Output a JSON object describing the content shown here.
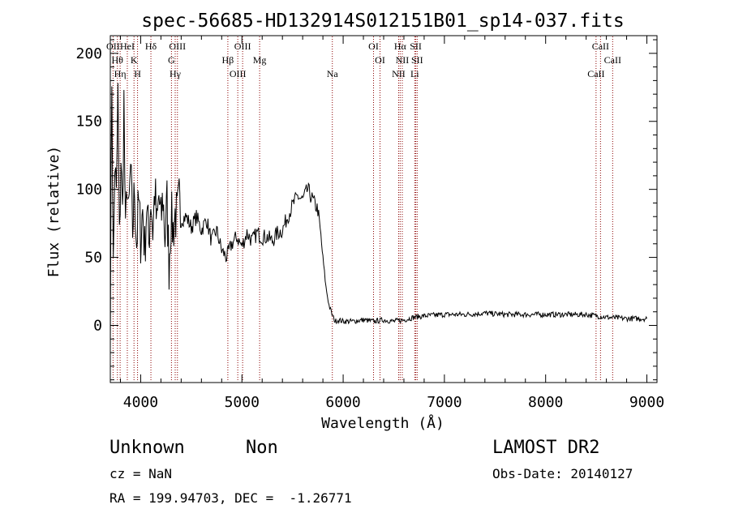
{
  "chart_data": {
    "type": "line",
    "title": "spec-56685-HD132914S012151B01_sp14-037.fits",
    "xlabel": "Wavelength (Å)",
    "ylabel": "Flux (relative)",
    "xlim": [
      3700,
      9100
    ],
    "ylim": [
      -42,
      213
    ],
    "x_ticks": [
      4000,
      5000,
      6000,
      7000,
      8000,
      9000
    ],
    "y_ticks": [
      0,
      50,
      100,
      150,
      200
    ],
    "grid": false,
    "series": [
      {
        "anchors": [
          [
            3700,
            5
          ],
          [
            3715,
            185
          ],
          [
            3730,
            40
          ],
          [
            3745,
            120
          ],
          [
            3760,
            90
          ],
          [
            3775,
            170
          ],
          [
            3790,
            60
          ],
          [
            3805,
            125
          ],
          [
            3820,
            80
          ],
          [
            3835,
            165
          ],
          [
            3850,
            60
          ],
          [
            3865,
            110
          ],
          [
            3880,
            75
          ],
          [
            3900,
            115
          ],
          [
            3920,
            70
          ],
          [
            3940,
            100
          ],
          [
            3960,
            60
          ],
          [
            3980,
            90
          ],
          [
            4000,
            65
          ],
          [
            4020,
            85
          ],
          [
            4040,
            55
          ],
          [
            4060,
            90
          ],
          [
            4080,
            60
          ],
          [
            4100,
            95
          ],
          [
            4120,
            70
          ],
          [
            4140,
            100
          ],
          [
            4160,
            70
          ],
          [
            4180,
            95
          ],
          [
            4200,
            75
          ],
          [
            4220,
            95
          ],
          [
            4240,
            65
          ],
          [
            4260,
            90
          ],
          [
            4280,
            45
          ],
          [
            4300,
            80
          ],
          [
            4320,
            70
          ],
          [
            4340,
            82
          ],
          [
            4360,
            78
          ],
          [
            4380,
            90
          ],
          [
            4400,
            78
          ],
          [
            4450,
            80
          ],
          [
            4500,
            72
          ],
          [
            4550,
            80
          ],
          [
            4600,
            70
          ],
          [
            4650,
            78
          ],
          [
            4700,
            62
          ],
          [
            4750,
            70
          ],
          [
            4800,
            55
          ],
          [
            4850,
            50
          ],
          [
            4900,
            60
          ],
          [
            4950,
            65
          ],
          [
            5000,
            58
          ],
          [
            5050,
            68
          ],
          [
            5100,
            62
          ],
          [
            5150,
            68
          ],
          [
            5200,
            65
          ],
          [
            5250,
            65
          ],
          [
            5300,
            62
          ],
          [
            5350,
            68
          ],
          [
            5400,
            70
          ],
          [
            5450,
            80
          ],
          [
            5500,
            88
          ],
          [
            5550,
            95
          ],
          [
            5600,
            92
          ],
          [
            5650,
            100
          ],
          [
            5700,
            92
          ],
          [
            5750,
            85
          ],
          [
            5780,
            65
          ],
          [
            5800,
            50
          ],
          [
            5830,
            28
          ],
          [
            5860,
            15
          ],
          [
            5890,
            8
          ],
          [
            5920,
            3
          ],
          [
            5950,
            4
          ],
          [
            6000,
            3
          ],
          [
            6100,
            3
          ],
          [
            6200,
            4
          ],
          [
            6300,
            3
          ],
          [
            6400,
            4
          ],
          [
            6500,
            3
          ],
          [
            6600,
            4
          ],
          [
            6700,
            6
          ],
          [
            6800,
            7
          ],
          [
            7000,
            8
          ],
          [
            7200,
            8
          ],
          [
            7400,
            9
          ],
          [
            7600,
            8
          ],
          [
            7800,
            8
          ],
          [
            8000,
            8
          ],
          [
            8200,
            8
          ],
          [
            8400,
            8
          ],
          [
            8600,
            6
          ],
          [
            8800,
            5
          ],
          [
            9000,
            5
          ]
        ]
      }
    ],
    "lines": [
      {
        "x": 3727,
        "rows": [
          [
            "OII",
            "OII"
          ]
        ]
      },
      {
        "x": 3770,
        "rows": [
          [
            "Hθ",
            "Hθ"
          ]
        ]
      },
      {
        "x": 3797,
        "rows": [
          [
            "Hη",
            "Hη"
          ]
        ]
      },
      {
        "x": 3868,
        "rows": [
          [
            "HeI",
            "HeI"
          ]
        ]
      },
      {
        "x": 3934,
        "rows": [
          [
            "K",
            "K"
          ]
        ]
      },
      {
        "x": 3969,
        "rows": [
          [
            "H",
            "H"
          ]
        ]
      },
      {
        "x": 4101,
        "rows": [
          [
            "Hδ",
            "Hδ"
          ]
        ]
      },
      {
        "x": 4304,
        "rows": [
          [
            "G",
            "G"
          ]
        ]
      },
      {
        "x": 4341,
        "rows": [
          [
            "Hγ",
            "Hγ"
          ]
        ]
      },
      {
        "x": 4363,
        "rows": [
          [
            "OIII",
            "OIII"
          ]
        ]
      },
      {
        "x": 4861,
        "rows": [
          [
            "Hβ",
            "Hβ"
          ]
        ]
      },
      {
        "x": 4959,
        "rows": [
          [
            "OIII",
            "OIII"
          ]
        ]
      },
      {
        "x": 5007,
        "rows": [
          [
            "OIII",
            "OIII"
          ]
        ]
      },
      {
        "x": 5175,
        "rows": [
          [
            "Mg",
            "Mg"
          ]
        ]
      },
      {
        "x": 5893,
        "rows": [
          [
            "Na",
            "Na"
          ]
        ]
      },
      {
        "x": 6300,
        "rows": [
          [
            "OI",
            "OI"
          ]
        ]
      },
      {
        "x": 6364,
        "rows": [
          [
            "OI",
            "OI"
          ]
        ]
      },
      {
        "x": 6548,
        "rows": [
          [
            "NII",
            "NII"
          ]
        ]
      },
      {
        "x": 6563,
        "rows": [
          [
            "Hα",
            "Hα"
          ]
        ]
      },
      {
        "x": 6584,
        "rows": [
          [
            "NII",
            "NII"
          ]
        ]
      },
      {
        "x": 6707,
        "rows": [
          [
            "Li",
            "Li"
          ]
        ]
      },
      {
        "x": 6717,
        "rows": [
          [
            "SII",
            "SII"
          ]
        ]
      },
      {
        "x": 6731,
        "rows": [
          [
            "SII",
            "SII"
          ]
        ]
      },
      {
        "x": 8498,
        "rows": [
          [
            "CaII",
            "CaII"
          ]
        ]
      },
      {
        "x": 8542,
        "rows": [
          [
            "CaII",
            "CaII"
          ]
        ]
      },
      {
        "x": 8662,
        "rows": [
          [
            "CaII",
            "CaII"
          ]
        ]
      }
    ],
    "line_color": "#8b0000"
  },
  "info": {
    "class": "Unknown",
    "subclass": "Non",
    "survey": "LAMOST DR2",
    "cz": "cz = NaN",
    "obs_date": "Obs-Date: 20140127",
    "coords": "RA = 199.94703, DEC =  -1.26771"
  }
}
